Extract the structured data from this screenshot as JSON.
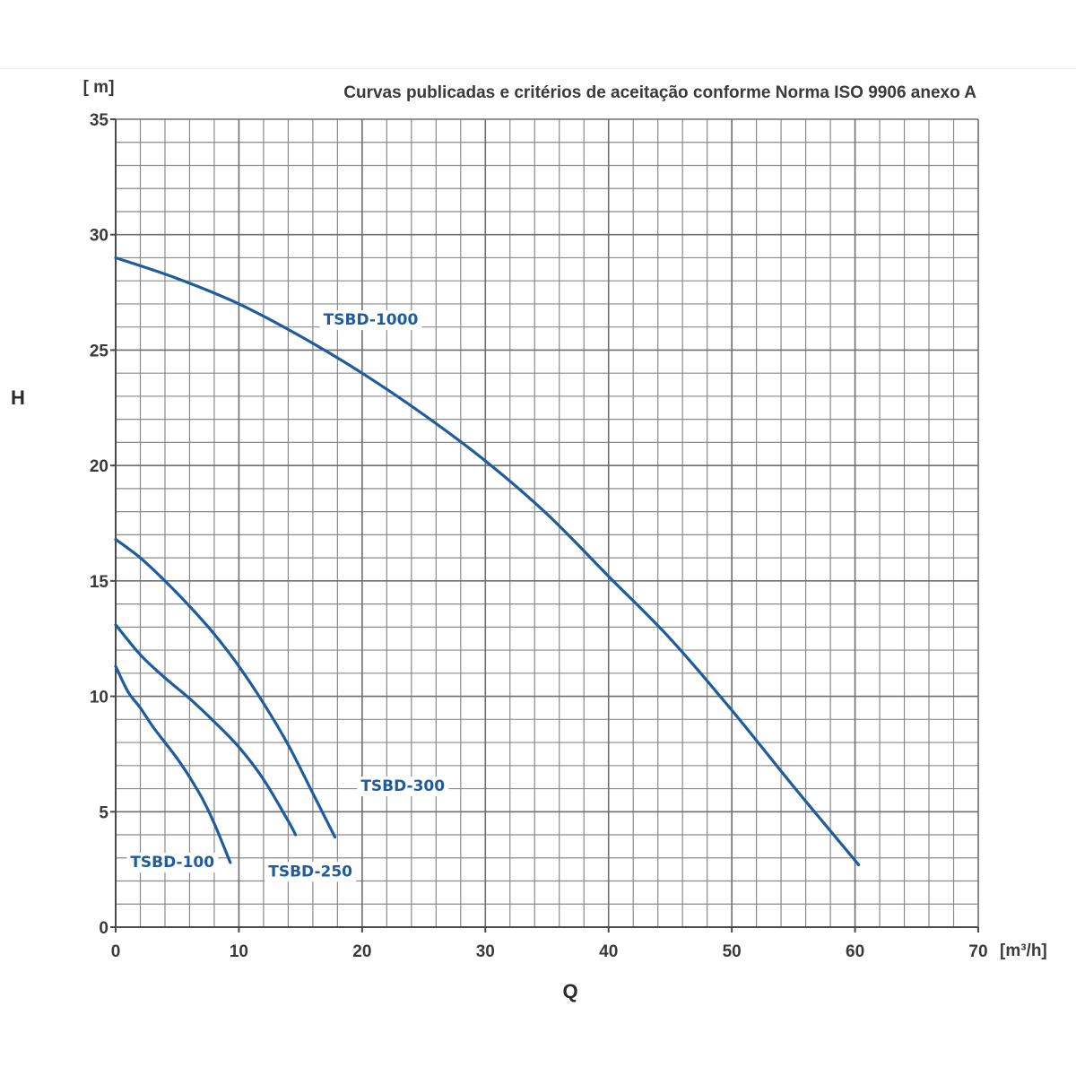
{
  "chart_data": {
    "type": "line",
    "title": "Curvas publicadas e critérios de aceitação conforme Norma ISO 9906 anexo A",
    "xlabel": "Q",
    "ylabel": "H",
    "x_unit": "[m³/h]",
    "y_unit": "[ m]",
    "xlim": [
      0,
      70
    ],
    "ylim": [
      0,
      35
    ],
    "x_ticks": [
      "0",
      "10",
      "20",
      "30",
      "40",
      "50",
      "60",
      "70"
    ],
    "y_ticks": [
      "0",
      "5",
      "10",
      "15",
      "20",
      "25",
      "30",
      "35"
    ],
    "x_minor_step": 2,
    "y_minor_step": 1,
    "grid": true,
    "line_color": "#1f5c9e",
    "series": [
      {
        "name": "TSBD-1000",
        "x": [
          0,
          5,
          10,
          15,
          20,
          25,
          30,
          35,
          40,
          45,
          50,
          55,
          60.3
        ],
        "y": [
          29.0,
          28.1,
          27.0,
          25.6,
          24.0,
          22.2,
          20.2,
          17.9,
          15.2,
          12.5,
          9.4,
          6.1,
          2.7
        ]
      },
      {
        "name": "TSBD-300",
        "x": [
          0,
          2,
          4,
          6,
          8,
          10,
          12,
          14,
          16,
          17.8
        ],
        "y": [
          16.8,
          16.0,
          15.0,
          13.9,
          12.7,
          11.3,
          9.7,
          7.9,
          5.8,
          3.9
        ]
      },
      {
        "name": "TSBD-250",
        "x": [
          0,
          2,
          4,
          6,
          8,
          10,
          12,
          14,
          14.6
        ],
        "y": [
          13.1,
          11.8,
          10.8,
          9.9,
          8.9,
          7.8,
          6.4,
          4.6,
          4.0
        ]
      },
      {
        "name": "TSBD-100",
        "x": [
          0,
          1,
          2,
          3,
          4,
          5,
          6,
          7,
          8,
          9.3
        ],
        "y": [
          11.3,
          10.2,
          9.5,
          8.7,
          8.0,
          7.3,
          6.5,
          5.6,
          4.5,
          2.8
        ]
      }
    ],
    "labels": [
      {
        "series": "TSBD-1000",
        "text": "TSBD-1000",
        "x": 20.7,
        "y": 26.1
      },
      {
        "series": "TSBD-300",
        "text": "TSBD-300",
        "x": 23.3,
        "y": 5.9
      },
      {
        "series": "TSBD-250",
        "text": "TSBD-250",
        "x": 15.8,
        "y": 2.2
      },
      {
        "series": "TSBD-100",
        "text": "TSBD-100",
        "x": 4.6,
        "y": 2.6
      }
    ]
  }
}
